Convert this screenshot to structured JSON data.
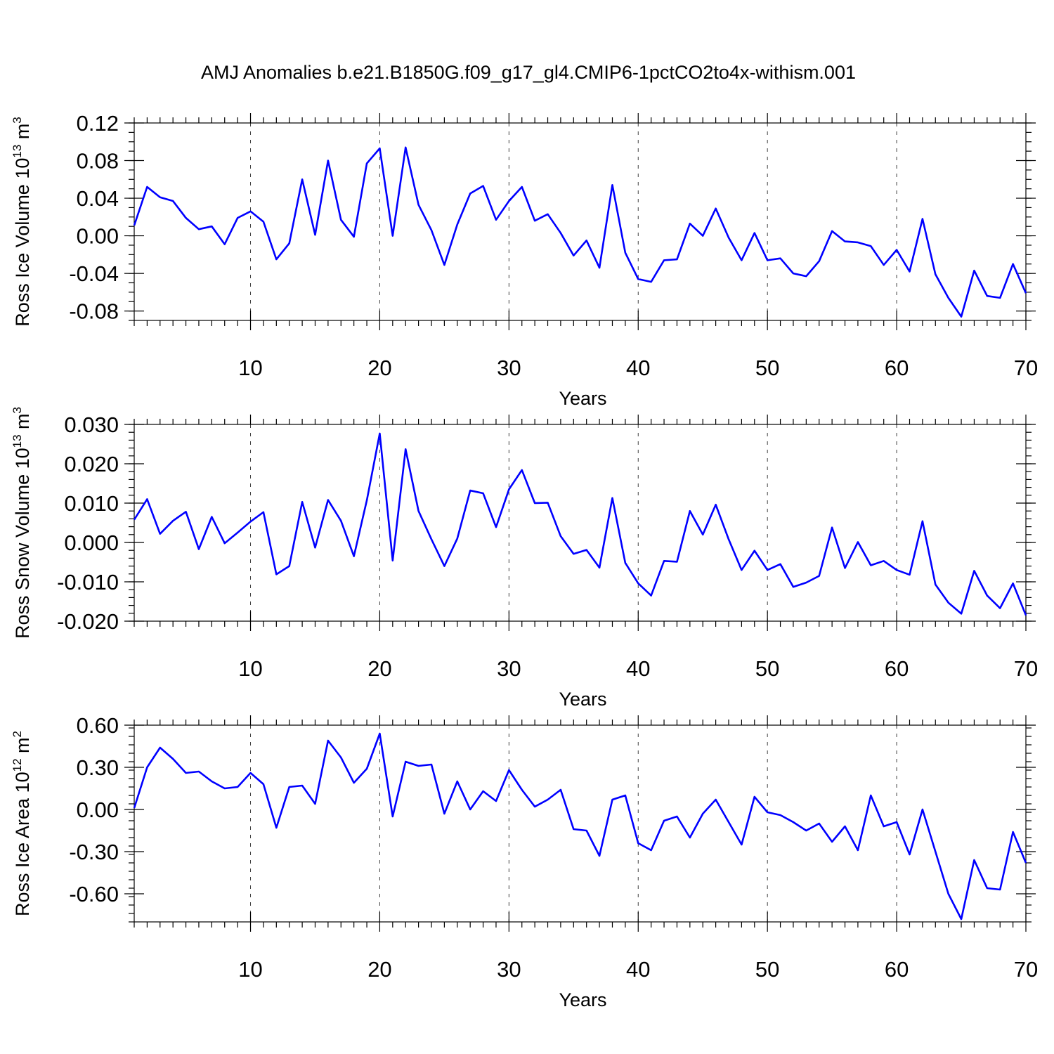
{
  "title": "AMJ Anomalies b.e21.B1850G.f09_g17_gl4.CMIP6-1pctCO2to4x-withism.001",
  "chart_data": [
    {
      "type": "line",
      "ylabel": "Ross Ice Volume 10",
      "ylabel_exp": "13",
      "ylabel_unit": " m",
      "ylabel_unit_exp": "3",
      "xlabel": "Years",
      "xlim": [
        1,
        70
      ],
      "ylim": [
        -0.09,
        0.12
      ],
      "yticks": [
        0.12,
        0.08,
        0.04,
        0.0,
        -0.04,
        -0.08
      ],
      "ytick_labels": [
        "0.12",
        "0.08",
        "0.04",
        "0.00",
        "-0.04",
        "-0.08"
      ],
      "yminor_step": 0.01,
      "xticks": [
        10,
        20,
        30,
        40,
        50,
        60,
        70
      ],
      "xtick_labels": [
        "10",
        "20",
        "30",
        "40",
        "50",
        "60",
        "70"
      ],
      "grid_x": [
        10,
        20,
        30,
        40,
        50,
        60
      ],
      "color": "#0000ff",
      "series": [
        {
          "name": "Ross Ice Volume",
          "x_start": 1,
          "values": [
            0.011,
            0.052,
            0.041,
            0.037,
            0.019,
            0.007,
            0.01,
            -0.009,
            0.019,
            0.026,
            0.015,
            -0.025,
            -0.008,
            0.06,
            0.001,
            0.08,
            0.017,
            -0.001,
            0.077,
            0.093,
            0.0,
            0.094,
            0.033,
            0.006,
            -0.031,
            0.012,
            0.045,
            0.053,
            0.017,
            0.037,
            0.052,
            0.016,
            0.023,
            0.003,
            -0.021,
            -0.005,
            -0.034,
            0.054,
            -0.018,
            -0.046,
            -0.049,
            -0.026,
            -0.025,
            0.013,
            0.0,
            0.029,
            -0.002,
            -0.026,
            0.003,
            -0.026,
            -0.024,
            -0.04,
            -0.043,
            -0.027,
            0.005,
            -0.006,
            -0.007,
            -0.011,
            -0.031,
            -0.015,
            -0.038,
            0.018,
            -0.041,
            -0.066,
            -0.086,
            -0.037,
            -0.064,
            -0.066,
            -0.03,
            -0.061
          ]
        }
      ]
    },
    {
      "type": "line",
      "ylabel": "Ross Snow Volume 10",
      "ylabel_exp": "13",
      "ylabel_unit": " m",
      "ylabel_unit_exp": "3",
      "xlabel": "Years",
      "xlim": [
        1,
        70
      ],
      "ylim": [
        -0.02,
        0.03
      ],
      "yticks": [
        0.03,
        0.02,
        0.01,
        0.0,
        -0.01,
        -0.02
      ],
      "ytick_labels": [
        "0.030",
        "0.020",
        "0.010",
        "0.000",
        "-0.010",
        "-0.020"
      ],
      "yminor_step": 0.002,
      "xticks": [
        10,
        20,
        30,
        40,
        50,
        60,
        70
      ],
      "xtick_labels": [
        "10",
        "20",
        "30",
        "40",
        "50",
        "60",
        "70"
      ],
      "grid_x": [
        10,
        20,
        30,
        40,
        50,
        60
      ],
      "color": "#0000ff",
      "series": [
        {
          "name": "Ross Snow Volume",
          "x_start": 1,
          "values": [
            0.0058,
            0.011,
            0.0022,
            0.0055,
            0.0078,
            -0.0017,
            0.0065,
            -0.0002,
            0.0025,
            0.0053,
            0.0077,
            -0.0081,
            -0.006,
            0.0103,
            -0.0013,
            0.0108,
            0.0055,
            -0.0035,
            0.0107,
            0.0277,
            -0.0046,
            0.0237,
            0.008,
            0.0008,
            -0.006,
            0.001,
            0.0132,
            0.0125,
            0.0039,
            0.0135,
            0.0184,
            0.01,
            0.0101,
            0.0016,
            -0.0029,
            -0.0019,
            -0.0064,
            0.0113,
            -0.0052,
            -0.0104,
            -0.0135,
            -0.0047,
            -0.0049,
            0.008,
            0.002,
            0.0096,
            0.0008,
            -0.007,
            -0.0021,
            -0.007,
            -0.0055,
            -0.0113,
            -0.0102,
            -0.0085,
            0.0038,
            -0.0065,
            0.0001,
            -0.0058,
            -0.0047,
            -0.007,
            -0.0082,
            0.0054,
            -0.0107,
            -0.0153,
            -0.0181,
            -0.0072,
            -0.0135,
            -0.0167,
            -0.0104,
            -0.0185
          ]
        }
      ]
    },
    {
      "type": "line",
      "ylabel": "Ross Ice Area 10",
      "ylabel_exp": "12",
      "ylabel_unit": " m",
      "ylabel_unit_exp": "2",
      "xlabel": "Years",
      "xlim": [
        1,
        70
      ],
      "ylim": [
        -0.8,
        0.6
      ],
      "yticks": [
        0.6,
        0.3,
        0.0,
        -0.3,
        -0.6
      ],
      "ytick_labels": [
        "0.60",
        "0.30",
        "0.00",
        "-0.30",
        "-0.60"
      ],
      "yminor_step": 0.06,
      "xticks": [
        10,
        20,
        30,
        40,
        50,
        60,
        70
      ],
      "xtick_labels": [
        "10",
        "20",
        "30",
        "40",
        "50",
        "60",
        "70"
      ],
      "grid_x": [
        10,
        20,
        30,
        40,
        50,
        60
      ],
      "color": "#0000ff",
      "series": [
        {
          "name": "Ross Ice Area",
          "x_start": 1,
          "values": [
            0.01,
            0.3,
            0.44,
            0.36,
            0.26,
            0.27,
            0.2,
            0.15,
            0.16,
            0.26,
            0.18,
            -0.13,
            0.16,
            0.17,
            0.04,
            0.49,
            0.37,
            0.19,
            0.29,
            0.54,
            -0.05,
            0.34,
            0.31,
            0.32,
            -0.03,
            0.2,
            0.0,
            0.13,
            0.06,
            0.28,
            0.14,
            0.02,
            0.07,
            0.14,
            -0.14,
            -0.15,
            -0.33,
            0.07,
            0.1,
            -0.24,
            -0.29,
            -0.08,
            -0.05,
            -0.2,
            -0.03,
            0.07,
            -0.09,
            -0.25,
            0.09,
            -0.02,
            -0.04,
            -0.09,
            -0.15,
            -0.1,
            -0.23,
            -0.12,
            -0.29,
            0.1,
            -0.12,
            -0.09,
            -0.32,
            0.0,
            -0.3,
            -0.6,
            -0.78,
            -0.36,
            -0.56,
            -0.57,
            -0.16,
            -0.38
          ]
        }
      ]
    }
  ]
}
